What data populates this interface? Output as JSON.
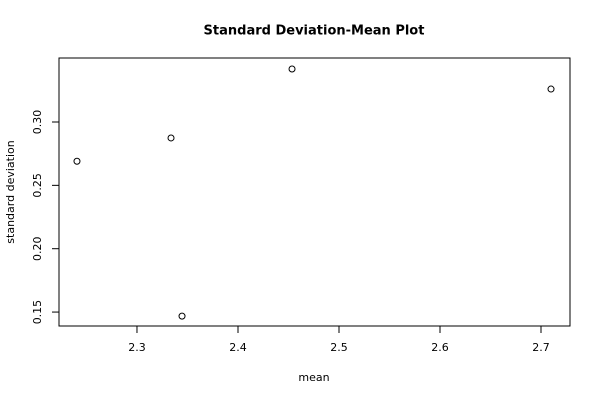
{
  "chart_data": {
    "type": "scatter",
    "title": "Standard Deviation-Mean Plot",
    "x_label": "mean",
    "y_label": "standard deviation",
    "x": [
      2.2406,
      2.3337,
      2.3446,
      2.4535,
      2.7099
    ],
    "values": [
      0.269,
      0.2874,
      0.1468,
      0.3418,
      0.326
    ],
    "color": "#000000",
    "xlim": [
      2.2228,
      2.7287
    ],
    "ylim": [
      0.139,
      0.3505
    ],
    "xticks": [
      2.3,
      2.4,
      2.5,
      2.6,
      2.7
    ],
    "yticks": [
      0.15,
      {
        "value": 0.2,
        "label": "0.20"
      },
      0.25,
      {
        "value": 0.3,
        "label": "0.30"
      }
    ]
  }
}
